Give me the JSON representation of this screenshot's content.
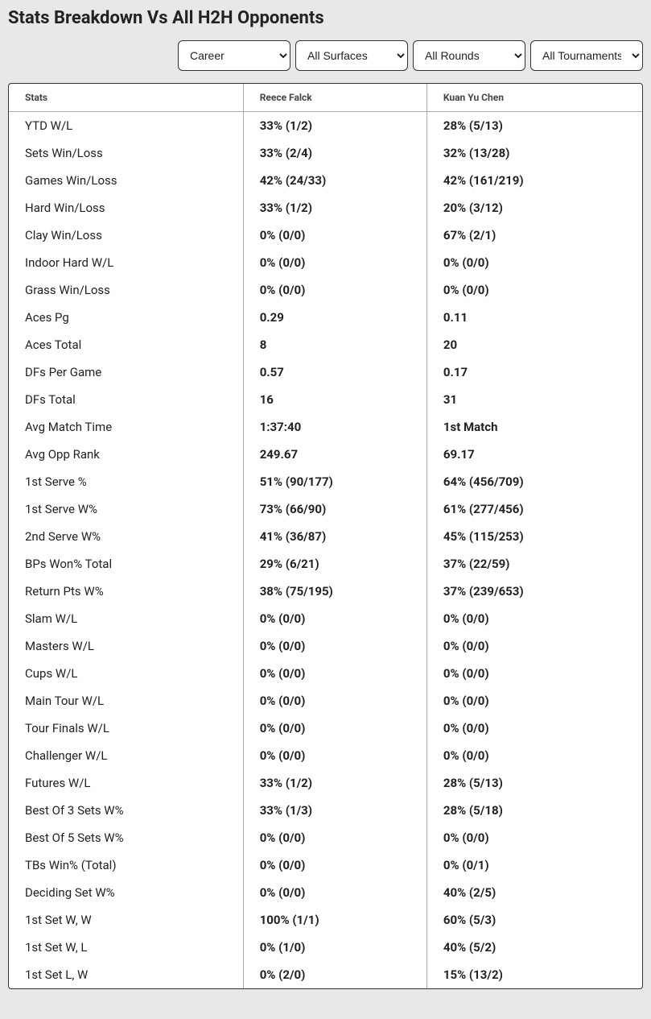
{
  "title": "Stats Breakdown Vs All H2H Opponents",
  "filters": {
    "period": "Career",
    "surface": "All Surfaces",
    "round": "All Rounds",
    "tournament": "All Tournaments"
  },
  "columns": {
    "stats": "Stats",
    "player1": "Reece Falck",
    "player2": "Kuan Yu Chen"
  },
  "rows": [
    {
      "label": "YTD W/L",
      "p1": "33% (1/2)",
      "p2": "28% (5/13)"
    },
    {
      "label": "Sets Win/Loss",
      "p1": "33% (2/4)",
      "p2": "32% (13/28)"
    },
    {
      "label": "Games Win/Loss",
      "p1": "42% (24/33)",
      "p2": "42% (161/219)"
    },
    {
      "label": "Hard Win/Loss",
      "p1": "33% (1/2)",
      "p2": "20% (3/12)"
    },
    {
      "label": "Clay Win/Loss",
      "p1": "0% (0/0)",
      "p2": "67% (2/1)"
    },
    {
      "label": "Indoor Hard W/L",
      "p1": "0% (0/0)",
      "p2": "0% (0/0)"
    },
    {
      "label": "Grass Win/Loss",
      "p1": "0% (0/0)",
      "p2": "0% (0/0)"
    },
    {
      "label": "Aces Pg",
      "p1": "0.29",
      "p2": "0.11"
    },
    {
      "label": "Aces Total",
      "p1": "8",
      "p2": "20"
    },
    {
      "label": "DFs Per Game",
      "p1": "0.57",
      "p2": "0.17"
    },
    {
      "label": "DFs Total",
      "p1": "16",
      "p2": "31"
    },
    {
      "label": "Avg Match Time",
      "p1": "1:37:40",
      "p2": "1st Match"
    },
    {
      "label": "Avg Opp Rank",
      "p1": "249.67",
      "p2": "69.17"
    },
    {
      "label": "1st Serve %",
      "p1": "51% (90/177)",
      "p2": "64% (456/709)"
    },
    {
      "label": "1st Serve W%",
      "p1": "73% (66/90)",
      "p2": "61% (277/456)"
    },
    {
      "label": "2nd Serve W%",
      "p1": "41% (36/87)",
      "p2": "45% (115/253)"
    },
    {
      "label": "BPs Won% Total",
      "p1": "29% (6/21)",
      "p2": "37% (22/59)"
    },
    {
      "label": "Return Pts W%",
      "p1": "38% (75/195)",
      "p2": "37% (239/653)"
    },
    {
      "label": "Slam W/L",
      "p1": "0% (0/0)",
      "p2": "0% (0/0)"
    },
    {
      "label": "Masters W/L",
      "p1": "0% (0/0)",
      "p2": "0% (0/0)"
    },
    {
      "label": "Cups W/L",
      "p1": "0% (0/0)",
      "p2": "0% (0/0)"
    },
    {
      "label": "Main Tour W/L",
      "p1": "0% (0/0)",
      "p2": "0% (0/0)"
    },
    {
      "label": "Tour Finals W/L",
      "p1": "0% (0/0)",
      "p2": "0% (0/0)"
    },
    {
      "label": "Challenger W/L",
      "p1": "0% (0/0)",
      "p2": "0% (0/0)"
    },
    {
      "label": "Futures W/L",
      "p1": "33% (1/2)",
      "p2": "28% (5/13)"
    },
    {
      "label": "Best Of 3 Sets W%",
      "p1": "33% (1/3)",
      "p2": "28% (5/18)"
    },
    {
      "label": "Best Of 5 Sets W%",
      "p1": "0% (0/0)",
      "p2": "0% (0/0)"
    },
    {
      "label": "TBs Win% (Total)",
      "p1": "0% (0/0)",
      "p2": "0% (0/1)"
    },
    {
      "label": "Deciding Set W%",
      "p1": "0% (0/0)",
      "p2": "40% (2/5)"
    },
    {
      "label": "1st Set W, W",
      "p1": "100% (1/1)",
      "p2": "60% (5/3)"
    },
    {
      "label": "1st Set W, L",
      "p1": "0% (1/0)",
      "p2": "40% (5/2)"
    },
    {
      "label": "1st Set L, W",
      "p1": "0% (2/0)",
      "p2": "15% (13/2)"
    }
  ]
}
